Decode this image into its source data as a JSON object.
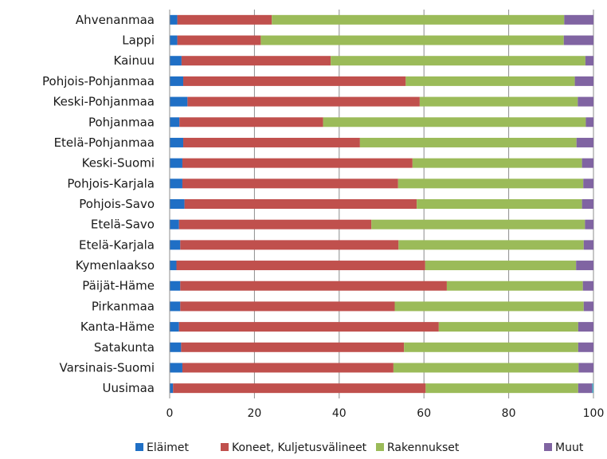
{
  "chart_data": {
    "type": "bar",
    "orientation": "horizontal",
    "stacked": true,
    "title": "",
    "xlabel": "",
    "ylabel": "",
    "xlim": [
      0,
      100
    ],
    "xticks": [
      0,
      20,
      40,
      60,
      80,
      100
    ],
    "grid": "vertical",
    "legend_position": "bottom",
    "categories": [
      "Ahvenanmaa",
      "Lappi",
      "Kainuu",
      "Pohjois-Pohjanmaa",
      "Keski-Pohjanmaa",
      "Pohjanmaa",
      "Etelä-Pohjanmaa",
      "Keski-Suomi",
      "Pohjois-Karjala",
      "Pohjois-Savo",
      "Etelä-Savo",
      "Etelä-Karjala",
      "Kymenlaakso",
      "Päijät-Häme",
      "Pirkanmaa",
      "Kanta-Häme",
      "Satakunta",
      "Varsinais-Suomi",
      "Uusimaa"
    ],
    "series": [
      {
        "name": "Eläimet",
        "color": "#1f6fc5",
        "values": [
          1.8,
          1.8,
          2.8,
          3.2,
          4.2,
          2.3,
          3.2,
          3.0,
          3.0,
          3.5,
          2.2,
          2.5,
          1.6,
          2.5,
          2.5,
          2.2,
          2.7,
          3.0,
          0.8
        ]
      },
      {
        "name": "Koneet, Kuljetusvälineet",
        "color": "#c0504d",
        "values": [
          22.3,
          19.7,
          35.2,
          52.5,
          54.8,
          33.9,
          41.7,
          54.3,
          50.9,
          54.8,
          45.4,
          51.5,
          58.7,
          62.9,
          50.6,
          61.3,
          52.6,
          49.8,
          59.6
        ]
      },
      {
        "name": "Rakennukset",
        "color": "#9bbb59",
        "values": [
          69.0,
          71.5,
          60.1,
          39.9,
          37.3,
          62.0,
          51.1,
          40.0,
          43.7,
          39.0,
          50.4,
          43.7,
          35.6,
          32.1,
          44.6,
          32.9,
          41.1,
          43.7,
          36.0
        ]
      },
      {
        "name": "Muut",
        "color": "#8064a2",
        "values": [
          6.9,
          7.0,
          1.9,
          4.4,
          3.7,
          1.8,
          4.0,
          2.7,
          2.4,
          2.7,
          2.0,
          2.3,
          4.1,
          2.5,
          2.3,
          3.6,
          3.6,
          3.5,
          3.3
        ]
      },
      {
        "name": "",
        "color": "#4bacc6",
        "values": [
          0,
          0,
          0,
          0,
          0,
          0,
          0,
          0,
          0,
          0,
          0,
          0,
          0,
          0,
          0,
          0,
          0,
          0,
          0.3
        ]
      }
    ],
    "legend": [
      "Eläimet",
      "Koneet, Kuljetusvälineet",
      "Rakennukset",
      "Muut"
    ]
  }
}
